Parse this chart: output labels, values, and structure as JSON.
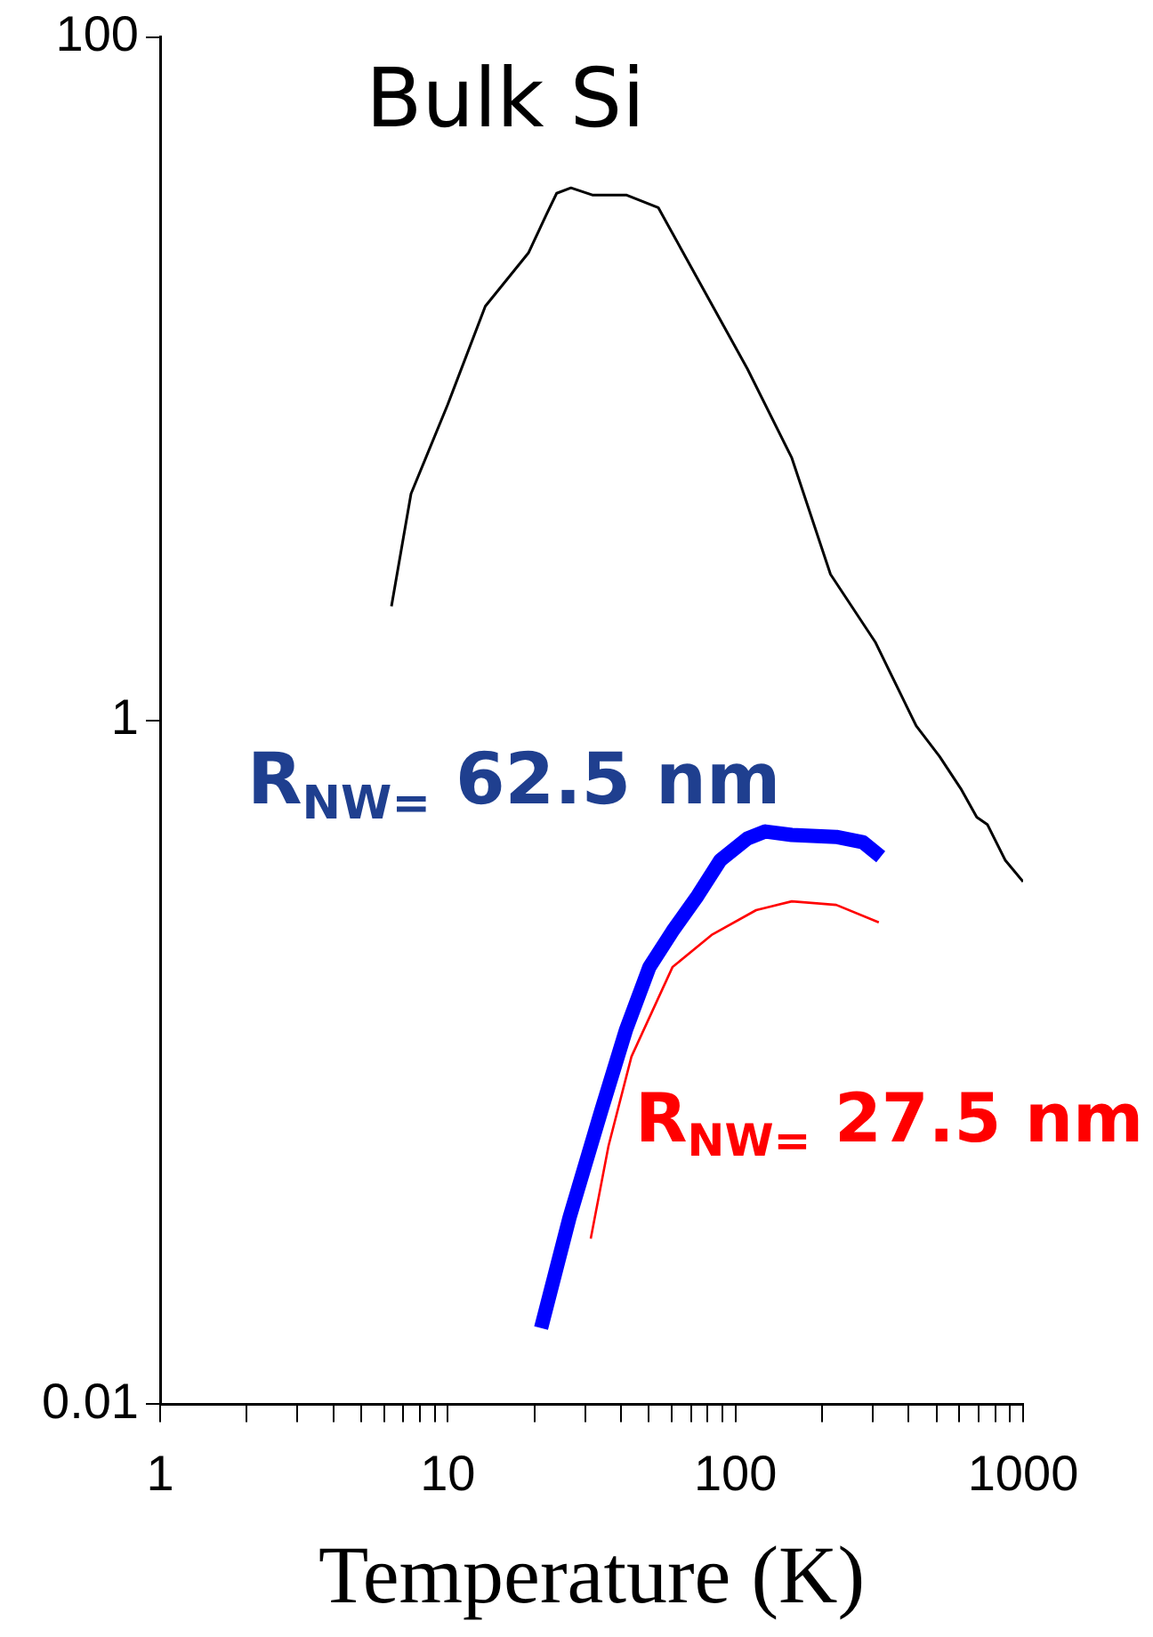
{
  "chart_data": {
    "type": "line",
    "xlabel": "Temperature (K)",
    "log": "xy",
    "xlim": [
      1,
      1000
    ],
    "ylim": [
      0.01,
      100
    ],
    "xticks": [
      1,
      {
        "value": 2,
        "label": null
      },
      {
        "value": 3,
        "label": null
      },
      {
        "value": 4,
        "label": null
      },
      {
        "value": 5,
        "label": null
      },
      {
        "value": 6,
        "label": null
      },
      {
        "value": 7,
        "label": null
      },
      {
        "value": 8,
        "label": null
      },
      {
        "value": 9,
        "label": null
      },
      10,
      {
        "value": 20,
        "label": null
      },
      {
        "value": 30,
        "label": null
      },
      {
        "value": 40,
        "label": null
      },
      {
        "value": 50,
        "label": null
      },
      {
        "value": 60,
        "label": null
      },
      {
        "value": 70,
        "label": null
      },
      {
        "value": 80,
        "label": null
      },
      {
        "value": 90,
        "label": null
      },
      100,
      {
        "value": 200,
        "label": null
      },
      {
        "value": 300,
        "label": null
      },
      {
        "value": 400,
        "label": null
      },
      {
        "value": 500,
        "label": null
      },
      {
        "value": 600,
        "label": null
      },
      {
        "value": 700,
        "label": null
      },
      {
        "value": 800,
        "label": null
      },
      {
        "value": 900,
        "label": null
      },
      1000
    ],
    "yticks": [
      0.01,
      1,
      100
    ],
    "grid": false,
    "legend": false,
    "marker": "none",
    "line_style": "solid",
    "series": [
      {
        "color": "#000000",
        "x": [
          6.37,
          7.45,
          10.0,
          13.5,
          19.1,
          22.0,
          23.9,
          26.8,
          31.8,
          41.7,
          53.9,
          110,
          157,
          214,
          306,
          425,
          512,
          607,
          690,
          751,
          866,
          1000
        ],
        "values": [
          2.16,
          4.61,
          8.42,
          16.3,
          23.4,
          30.2,
          34.9,
          36.2,
          34.5,
          34.5,
          31.7,
          10.7,
          5.87,
          2.68,
          1.7,
          0.965,
          0.786,
          0.633,
          0.522,
          0.497,
          0.391,
          0.338
        ]
      },
      {
        "color": "#0000ff",
        "x": [
          21.1,
          26.5,
          34.2,
          41.7,
          50.2,
          60.4,
          73.8,
          88.7,
          110,
          127,
          157,
          224,
          277,
          320
        ],
        "values": [
          0.0167,
          0.0352,
          0.0725,
          0.125,
          0.19,
          0.242,
          0.307,
          0.391,
          0.452,
          0.474,
          0.463,
          0.457,
          0.441,
          0.4
        ]
      },
      {
        "color": "#ff0000",
        "x": [
          31.4,
          36.2,
          43.5,
          60.4,
          82.6,
          118,
          157,
          224,
          315
        ],
        "values": [
          0.0305,
          0.057,
          0.104,
          0.19,
          0.236,
          0.279,
          0.296,
          0.289,
          0.257
        ]
      }
    ],
    "annotations": [
      "Bulk Si",
      "R$_{NW=}$ 62.5 nm",
      "R$_{NW=}$ 27.5 nm"
    ]
  }
}
